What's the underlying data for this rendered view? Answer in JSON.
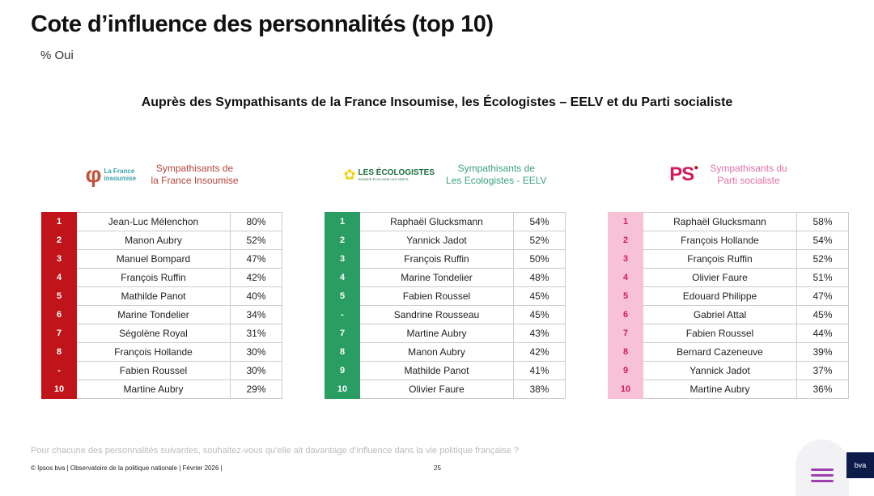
{
  "title": "Cote d’influence des personnalités (top 10)",
  "subtitle": "% Oui",
  "heading": "Auprès des Sympathisants de la France Insoumise, les Écologistes – EELV et du Parti socialiste",
  "panels": [
    {
      "logo_text": "La France insoumise",
      "label_line1": "Sympathisants de",
      "label_line2": "la France Insoumise",
      "color": "#b5443a",
      "rows": [
        [
          "1",
          "Jean-Luc Mélenchon",
          "80%"
        ],
        [
          "2",
          "Manon Aubry",
          "52%"
        ],
        [
          "3",
          "Manuel Bompard",
          "47%"
        ],
        [
          "4",
          "François Ruffin",
          "42%"
        ],
        [
          "5",
          "Mathilde Panot",
          "40%"
        ],
        [
          "6",
          "Marine Tondelier",
          "34%"
        ],
        [
          "7",
          "Ségolène Royal",
          "31%"
        ],
        [
          "8",
          "François Hollande",
          "30%"
        ],
        [
          "-",
          "Fabien Roussel",
          "30%"
        ],
        [
          "10",
          "Martine Aubry",
          "29%"
        ]
      ]
    },
    {
      "logo_text": "LES ÉCOLOGISTES",
      "logo_sub": "EUROPE ÉCOLOGIE LES VERTS",
      "label_line1": "Sympathisants de",
      "label_line2": "Les Ecologistes - EELV",
      "color": "#3aa37a",
      "rows": [
        [
          "1",
          "Raphaël Glucksmann",
          "54%"
        ],
        [
          "2",
          "Yannick Jadot",
          "52%"
        ],
        [
          "3",
          "François Ruffin",
          "50%"
        ],
        [
          "4",
          "Marine Tondelier",
          "48%"
        ],
        [
          "5",
          "Fabien Roussel",
          "45%"
        ],
        [
          "-",
          "Sandrine Rousseau",
          "45%"
        ],
        [
          "7",
          "Martine Aubry",
          "43%"
        ],
        [
          "8",
          "Manon Aubry",
          "42%"
        ],
        [
          "9",
          "Mathilde Panot",
          "41%"
        ],
        [
          "10",
          "Olivier Faure",
          "38%"
        ]
      ]
    },
    {
      "logo_text": "PS",
      "label_line1": "Sympathisants du",
      "label_line2": "Parti socialiste",
      "color": "#e070a8",
      "rows": [
        [
          "1",
          "Raphaël Glucksmann",
          "58%"
        ],
        [
          "2",
          "François Hollande",
          "54%"
        ],
        [
          "3",
          "François Ruffin",
          "52%"
        ],
        [
          "4",
          "Olivier Faure",
          "51%"
        ],
        [
          "5",
          "Edouard Philippe",
          "47%"
        ],
        [
          "6",
          "Gabriel Attal",
          "45%"
        ],
        [
          "7",
          "Fabien Roussel",
          "44%"
        ],
        [
          "8",
          "Bernard Cazeneuve",
          "39%"
        ],
        [
          "9",
          "Yannick Jadot",
          "37%"
        ],
        [
          "10",
          "Martine Aubry",
          "36%"
        ]
      ]
    }
  ],
  "question": "Pour chacune des personnalités suivantes, souhaitez-vous qu’elle ait davantage d’influence dans la vie politique française ?",
  "footer": "© Ipsos bva | Observatoire de la politique nationale | Février 2026 |",
  "page_number": "25",
  "brand": "bva"
}
